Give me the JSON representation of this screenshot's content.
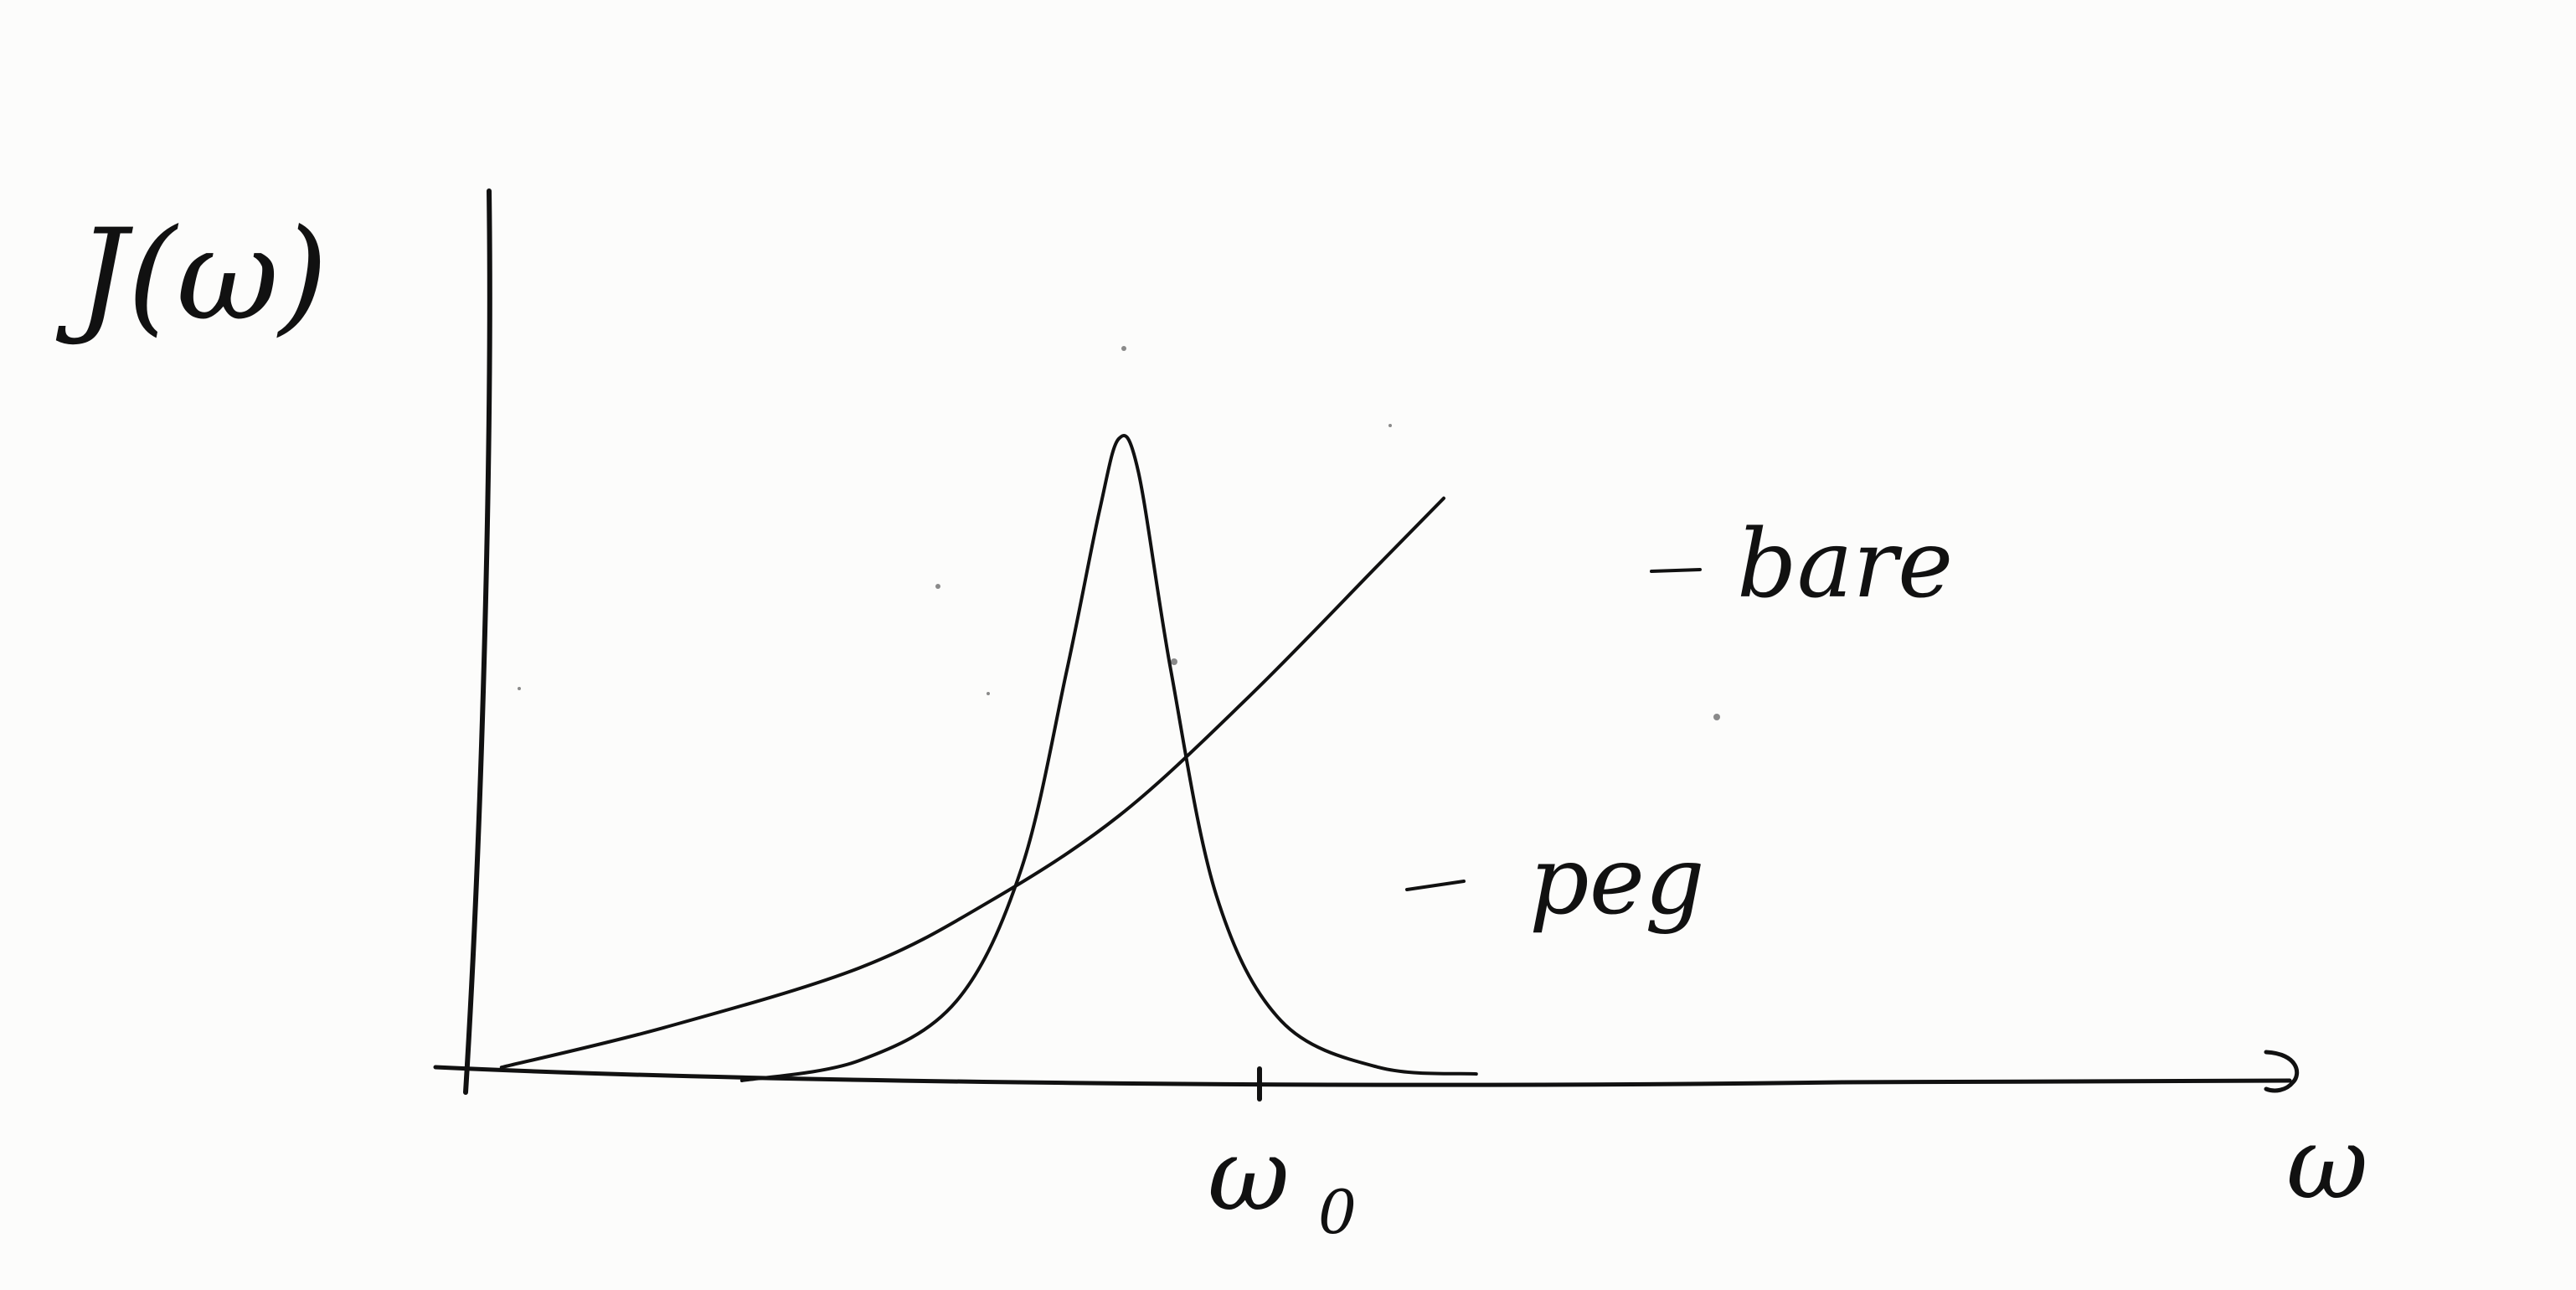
{
  "chart_data": {
    "type": "line",
    "title": "",
    "ylabel": "J(ω)",
    "xlabel": "ω",
    "x_ticks": [
      {
        "label": "ω",
        "subscript": "0",
        "value": 1.0
      }
    ],
    "xlim": [
      0,
      2.5
    ],
    "ylim": [
      0,
      1.0
    ],
    "grid": false,
    "legend": "none",
    "series": [
      {
        "name": "bare",
        "kind": "monotonic rising curve",
        "x": [
          0.05,
          0.3,
          0.6,
          0.8,
          1.0,
          1.2,
          1.4,
          1.5
        ],
        "y": [
          0.02,
          0.08,
          0.17,
          0.27,
          0.4,
          0.58,
          0.78,
          0.88
        ]
      },
      {
        "name": "peg",
        "kind": "resonance peak centered at ω0",
        "x": [
          0.42,
          0.6,
          0.75,
          0.85,
          0.92,
          0.97,
          1.0,
          1.03,
          1.08,
          1.15,
          1.25,
          1.4,
          1.55
        ],
        "y": [
          0.0,
          0.03,
          0.12,
          0.32,
          0.62,
          0.86,
          0.97,
          0.92,
          0.62,
          0.28,
          0.09,
          0.02,
          0.01
        ]
      }
    ],
    "colors": {
      "ink": "#111111",
      "paper": "#fcfcfb"
    }
  }
}
